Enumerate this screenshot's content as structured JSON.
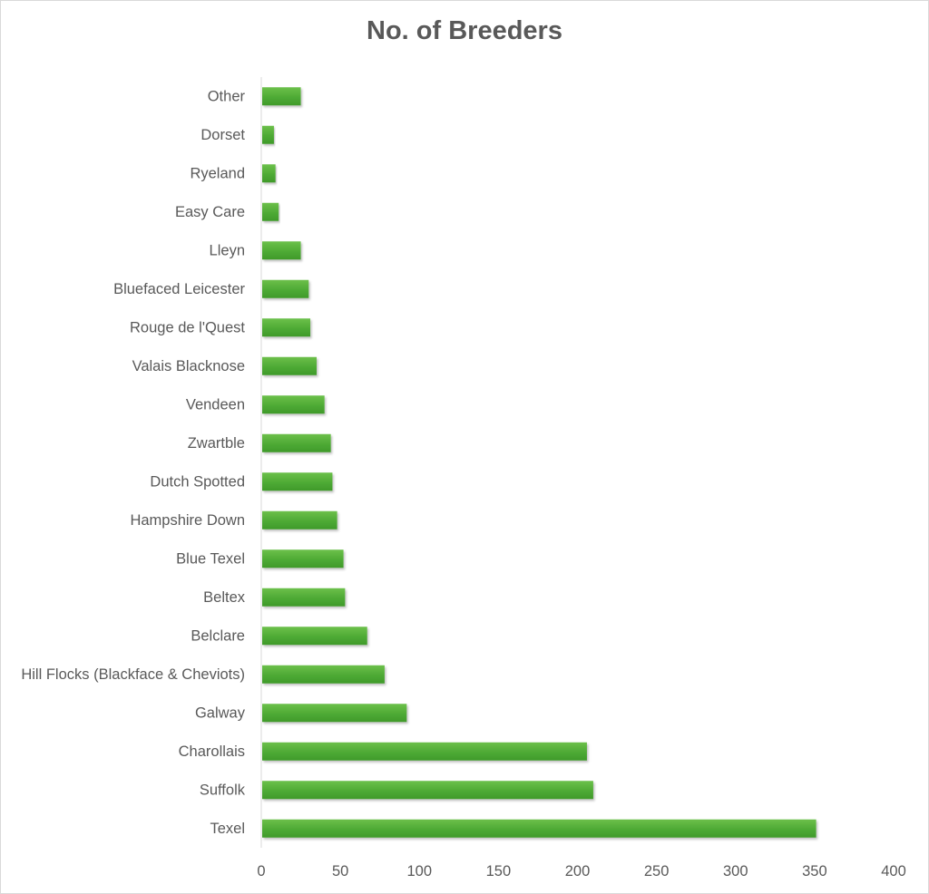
{
  "chart_data": {
    "type": "bar",
    "orientation": "horizontal",
    "title": "No. of Breeders",
    "xlabel": "",
    "ylabel": "",
    "xlim": [
      0,
      400
    ],
    "ticks": [
      "0",
      "50",
      "100",
      "150",
      "200",
      "250",
      "300",
      "350",
      "400"
    ],
    "grid": false,
    "legend": "none",
    "bar_color": "#4eaa35",
    "categories": [
      "Texel",
      "Suffolk",
      "Charollais",
      "Galway",
      "Hill Flocks (Blackface & Cheviots)",
      "Belclare",
      "Beltex",
      "Blue Texel",
      "Hampshire Down",
      "Dutch Spotted",
      "Zwartble",
      "Vendeen",
      "Valais Blacknose",
      "Rouge de l'Quest",
      "Bluefaced Leicester",
      "Lleyn",
      "Easy Care",
      "Ryeland",
      "Dorset",
      "Other"
    ],
    "values": [
      351,
      210,
      206,
      92,
      78,
      67,
      53,
      52,
      48,
      45,
      44,
      40,
      35,
      31,
      30,
      25,
      11,
      9,
      8,
      25
    ]
  }
}
